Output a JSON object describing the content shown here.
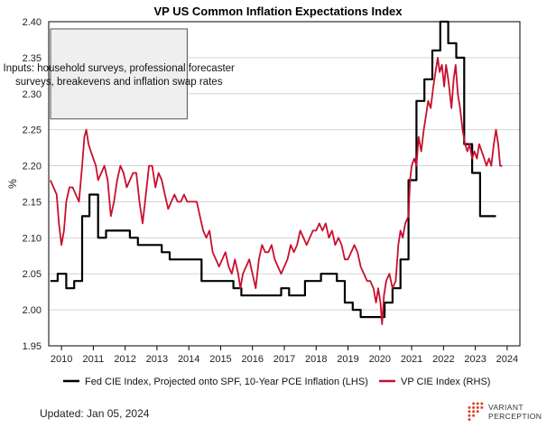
{
  "chart_data": {
    "type": "line",
    "title": "VP US Common Inflation Expectations Index",
    "ylabel": "%",
    "ylim": [
      1.95,
      2.4
    ],
    "yticks": [
      "1.95",
      "2.00",
      "2.05",
      "2.10",
      "2.15",
      "2.20",
      "2.25",
      "2.30",
      "2.35",
      "2.40"
    ],
    "xlim": [
      2009.6,
      2024.4
    ],
    "xticks": [
      "2010",
      "2011",
      "2012",
      "2013",
      "2014",
      "2015",
      "2016",
      "2017",
      "2018",
      "2019",
      "2020",
      "2021",
      "2022",
      "2023",
      "2024"
    ],
    "grid": "horizontal",
    "legend_position": "bottom",
    "annotation": "Inputs: household surveys, professional forecaster surveys, breakevens and inflation swap rates",
    "series": [
      {
        "name": "Fed CIE Index, Projected onto SPF, 10-Year PCE Inflation (LHS)",
        "color": "#000000",
        "step": true,
        "points": [
          [
            2009.65,
            2.04
          ],
          [
            2009.88,
            2.05
          ],
          [
            2010.15,
            2.03
          ],
          [
            2010.4,
            2.04
          ],
          [
            2010.65,
            2.13
          ],
          [
            2010.88,
            2.16
          ],
          [
            2011.15,
            2.1
          ],
          [
            2011.4,
            2.11
          ],
          [
            2012.15,
            2.1
          ],
          [
            2012.4,
            2.09
          ],
          [
            2013.15,
            2.08
          ],
          [
            2013.4,
            2.07
          ],
          [
            2014.15,
            2.07
          ],
          [
            2014.4,
            2.04
          ],
          [
            2015.15,
            2.04
          ],
          [
            2015.4,
            2.03
          ],
          [
            2015.65,
            2.02
          ],
          [
            2015.9,
            2.02
          ],
          [
            2016.15,
            2.02
          ],
          [
            2016.4,
            2.02
          ],
          [
            2016.65,
            2.02
          ],
          [
            2016.9,
            2.03
          ],
          [
            2017.15,
            2.02
          ],
          [
            2017.4,
            2.02
          ],
          [
            2017.65,
            2.04
          ],
          [
            2018.15,
            2.05
          ],
          [
            2018.65,
            2.04
          ],
          [
            2018.9,
            2.01
          ],
          [
            2019.15,
            2.0
          ],
          [
            2019.4,
            1.99
          ],
          [
            2019.9,
            1.99
          ],
          [
            2020.15,
            2.01
          ],
          [
            2020.4,
            2.03
          ],
          [
            2020.65,
            2.07
          ],
          [
            2020.9,
            2.18
          ],
          [
            2021.15,
            2.29
          ],
          [
            2021.4,
            2.32
          ],
          [
            2021.65,
            2.36
          ],
          [
            2021.9,
            2.4
          ],
          [
            2022.15,
            2.37
          ],
          [
            2022.4,
            2.35
          ],
          [
            2022.65,
            2.23
          ],
          [
            2022.9,
            2.19
          ],
          [
            2023.15,
            2.13
          ],
          [
            2023.4,
            2.13
          ]
        ]
      },
      {
        "name": "VP CIE Index (RHS)",
        "color": "#c8102e",
        "step": false,
        "points": [
          [
            2009.65,
            2.18
          ],
          [
            2009.75,
            2.17
          ],
          [
            2009.85,
            2.16
          ],
          [
            2009.92,
            2.12
          ],
          [
            2010.0,
            2.09
          ],
          [
            2010.08,
            2.11
          ],
          [
            2010.15,
            2.15
          ],
          [
            2010.25,
            2.17
          ],
          [
            2010.35,
            2.17
          ],
          [
            2010.45,
            2.16
          ],
          [
            2010.55,
            2.15
          ],
          [
            2010.65,
            2.2
          ],
          [
            2010.72,
            2.24
          ],
          [
            2010.78,
            2.25
          ],
          [
            2010.85,
            2.23
          ],
          [
            2010.92,
            2.22
          ],
          [
            2011.0,
            2.21
          ],
          [
            2011.08,
            2.2
          ],
          [
            2011.15,
            2.18
          ],
          [
            2011.25,
            2.19
          ],
          [
            2011.35,
            2.2
          ],
          [
            2011.45,
            2.18
          ],
          [
            2011.55,
            2.13
          ],
          [
            2011.65,
            2.15
          ],
          [
            2011.75,
            2.18
          ],
          [
            2011.85,
            2.2
          ],
          [
            2011.95,
            2.19
          ],
          [
            2012.05,
            2.17
          ],
          [
            2012.15,
            2.18
          ],
          [
            2012.25,
            2.19
          ],
          [
            2012.35,
            2.19
          ],
          [
            2012.45,
            2.15
          ],
          [
            2012.55,
            2.12
          ],
          [
            2012.65,
            2.16
          ],
          [
            2012.75,
            2.2
          ],
          [
            2012.85,
            2.2
          ],
          [
            2012.95,
            2.17
          ],
          [
            2013.05,
            2.19
          ],
          [
            2013.15,
            2.18
          ],
          [
            2013.25,
            2.16
          ],
          [
            2013.35,
            2.14
          ],
          [
            2013.45,
            2.15
          ],
          [
            2013.55,
            2.16
          ],
          [
            2013.65,
            2.15
          ],
          [
            2013.75,
            2.15
          ],
          [
            2013.85,
            2.16
          ],
          [
            2013.95,
            2.15
          ],
          [
            2014.05,
            2.15
          ],
          [
            2014.15,
            2.15
          ],
          [
            2014.25,
            2.15
          ],
          [
            2014.35,
            2.13
          ],
          [
            2014.45,
            2.11
          ],
          [
            2014.55,
            2.1
          ],
          [
            2014.65,
            2.11
          ],
          [
            2014.75,
            2.08
          ],
          [
            2014.85,
            2.07
          ],
          [
            2014.95,
            2.06
          ],
          [
            2015.05,
            2.07
          ],
          [
            2015.15,
            2.08
          ],
          [
            2015.25,
            2.06
          ],
          [
            2015.35,
            2.05
          ],
          [
            2015.45,
            2.07
          ],
          [
            2015.55,
            2.05
          ],
          [
            2015.62,
            2.03
          ],
          [
            2015.7,
            2.05
          ],
          [
            2015.8,
            2.06
          ],
          [
            2015.9,
            2.07
          ],
          [
            2016.0,
            2.05
          ],
          [
            2016.1,
            2.03
          ],
          [
            2016.2,
            2.07
          ],
          [
            2016.3,
            2.09
          ],
          [
            2016.4,
            2.08
          ],
          [
            2016.5,
            2.08
          ],
          [
            2016.6,
            2.09
          ],
          [
            2016.7,
            2.07
          ],
          [
            2016.8,
            2.06
          ],
          [
            2016.9,
            2.05
          ],
          [
            2017.0,
            2.06
          ],
          [
            2017.1,
            2.07
          ],
          [
            2017.2,
            2.09
          ],
          [
            2017.3,
            2.08
          ],
          [
            2017.4,
            2.09
          ],
          [
            2017.5,
            2.11
          ],
          [
            2017.6,
            2.1
          ],
          [
            2017.7,
            2.09
          ],
          [
            2017.8,
            2.1
          ],
          [
            2017.9,
            2.11
          ],
          [
            2018.0,
            2.11
          ],
          [
            2018.1,
            2.12
          ],
          [
            2018.2,
            2.11
          ],
          [
            2018.3,
            2.12
          ],
          [
            2018.4,
            2.1
          ],
          [
            2018.5,
            2.11
          ],
          [
            2018.6,
            2.09
          ],
          [
            2018.7,
            2.1
          ],
          [
            2018.8,
            2.09
          ],
          [
            2018.9,
            2.07
          ],
          [
            2019.0,
            2.07
          ],
          [
            2019.1,
            2.08
          ],
          [
            2019.2,
            2.09
          ],
          [
            2019.3,
            2.08
          ],
          [
            2019.4,
            2.06
          ],
          [
            2019.5,
            2.05
          ],
          [
            2019.6,
            2.04
          ],
          [
            2019.7,
            2.04
          ],
          [
            2019.8,
            2.03
          ],
          [
            2019.88,
            2.01
          ],
          [
            2019.95,
            2.03
          ],
          [
            2020.02,
            2.01
          ],
          [
            2020.07,
            1.98
          ],
          [
            2020.13,
            2.02
          ],
          [
            2020.2,
            2.04
          ],
          [
            2020.3,
            2.05
          ],
          [
            2020.4,
            2.03
          ],
          [
            2020.5,
            2.04
          ],
          [
            2020.58,
            2.09
          ],
          [
            2020.65,
            2.11
          ],
          [
            2020.72,
            2.1
          ],
          [
            2020.8,
            2.12
          ],
          [
            2020.9,
            2.13
          ],
          [
            2020.95,
            2.18
          ],
          [
            2021.0,
            2.2
          ],
          [
            2021.08,
            2.21
          ],
          [
            2021.15,
            2.2
          ],
          [
            2021.22,
            2.24
          ],
          [
            2021.3,
            2.22
          ],
          [
            2021.38,
            2.25
          ],
          [
            2021.45,
            2.27
          ],
          [
            2021.52,
            2.29
          ],
          [
            2021.6,
            2.28
          ],
          [
            2021.68,
            2.31
          ],
          [
            2021.75,
            2.33
          ],
          [
            2021.82,
            2.35
          ],
          [
            2021.88,
            2.33
          ],
          [
            2021.95,
            2.34
          ],
          [
            2022.02,
            2.31
          ],
          [
            2022.08,
            2.34
          ],
          [
            2022.15,
            2.32
          ],
          [
            2022.25,
            2.28
          ],
          [
            2022.32,
            2.32
          ],
          [
            2022.38,
            2.34
          ],
          [
            2022.45,
            2.3
          ],
          [
            2022.52,
            2.28
          ],
          [
            2022.6,
            2.25
          ],
          [
            2022.68,
            2.23
          ],
          [
            2022.75,
            2.22
          ],
          [
            2022.82,
            2.23
          ],
          [
            2022.9,
            2.21
          ],
          [
            2022.97,
            2.22
          ],
          [
            2023.05,
            2.21
          ],
          [
            2023.12,
            2.23
          ],
          [
            2023.2,
            2.22
          ],
          [
            2023.28,
            2.21
          ],
          [
            2023.35,
            2.2
          ],
          [
            2023.43,
            2.21
          ],
          [
            2023.5,
            2.2
          ],
          [
            2023.58,
            2.23
          ],
          [
            2023.65,
            2.25
          ],
          [
            2023.72,
            2.23
          ],
          [
            2023.78,
            2.2
          ],
          [
            2023.85,
            2.2
          ]
        ]
      }
    ]
  },
  "footer": {
    "updated": "Updated: Jan 05, 2024",
    "brand_line1": "VARIANT",
    "brand_line2": "PERCEPTION",
    "brand_color": "#d9442b"
  }
}
